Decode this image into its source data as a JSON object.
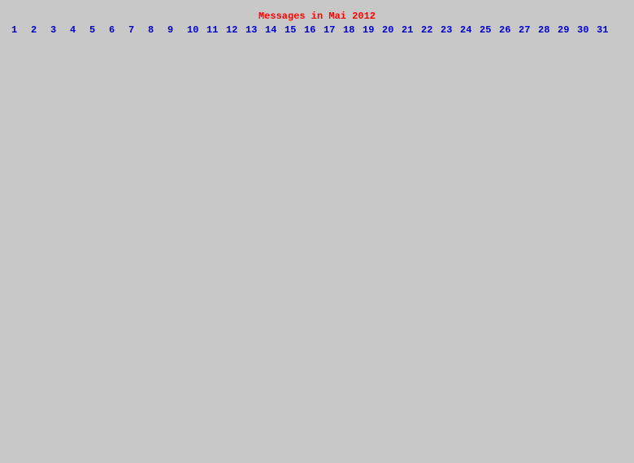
{
  "calendar": {
    "title": "Messages in Mai 2012",
    "days": [
      "1",
      "2",
      "3",
      "4",
      "5",
      "6",
      "7",
      "8",
      "9",
      "10",
      "11",
      "12",
      "13",
      "14",
      "15",
      "16",
      "17",
      "18",
      "19",
      "20",
      "21",
      "22",
      "23",
      "24",
      "25",
      "26",
      "27",
      "28",
      "29",
      "30",
      "31"
    ]
  },
  "colors": {
    "background": "#c8c8c8",
    "title": "#ff0000",
    "day_link": "#0000cc"
  }
}
